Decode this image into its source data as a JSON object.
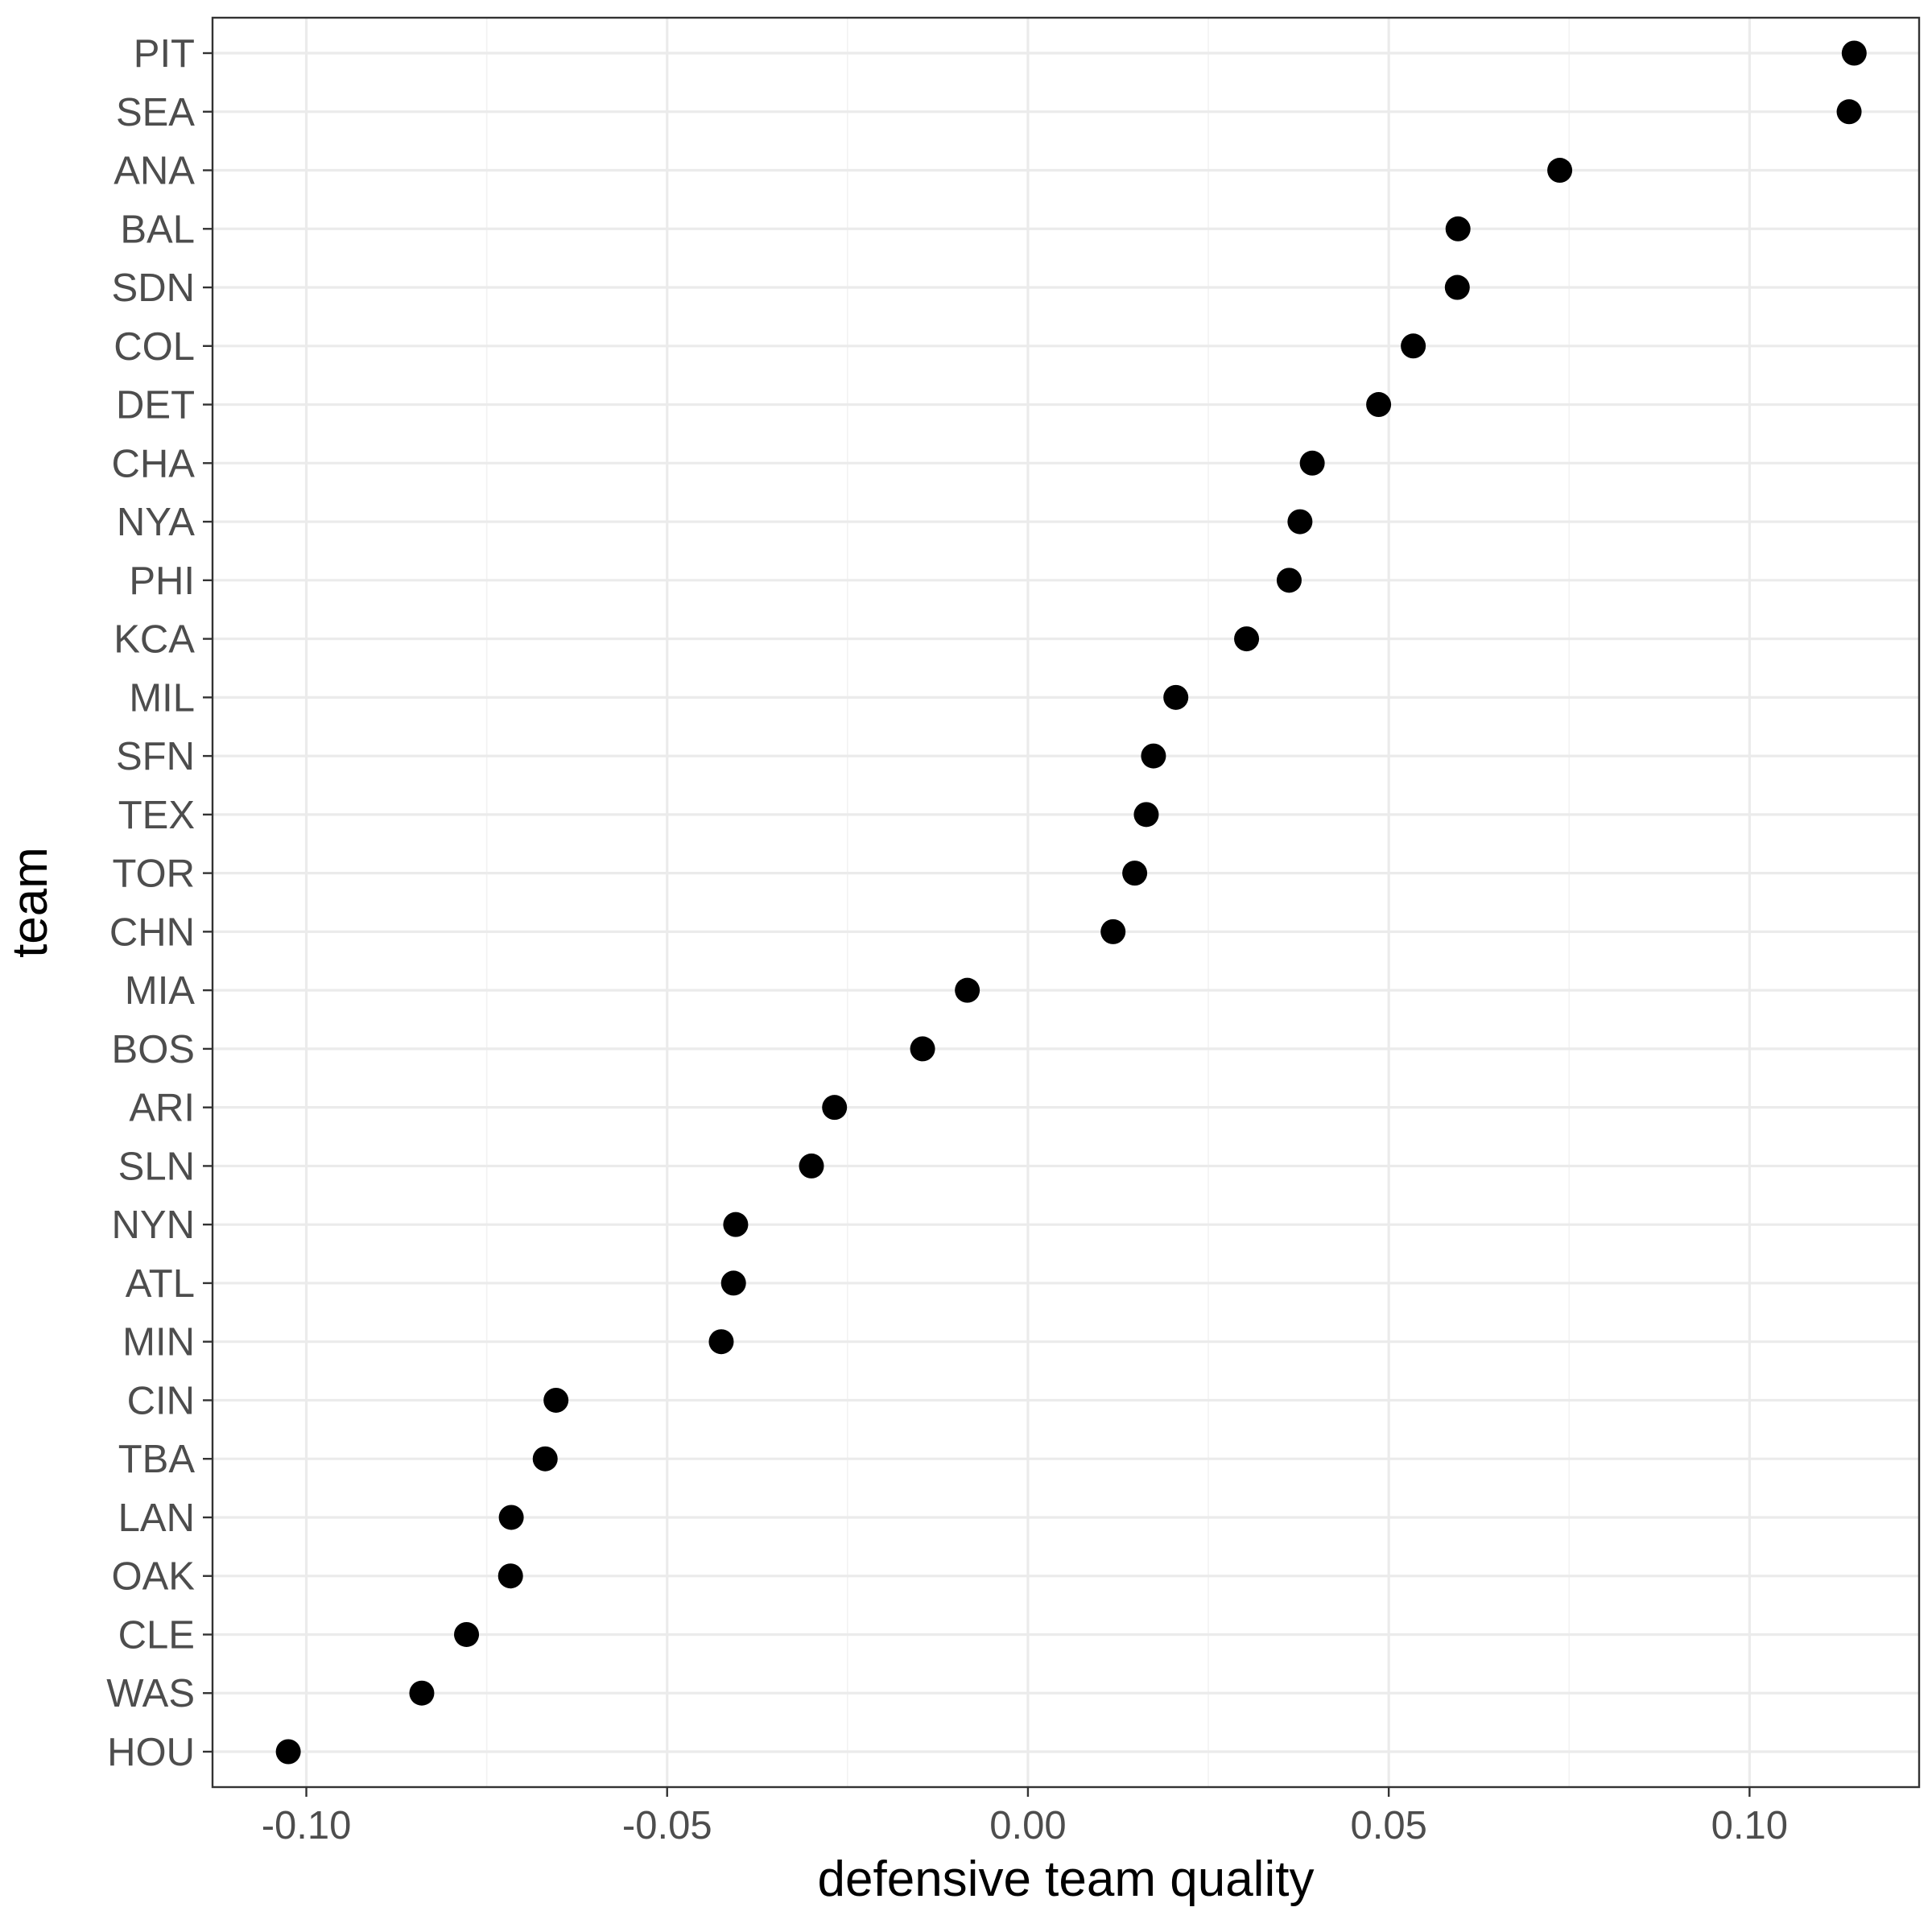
{
  "chart_data": {
    "type": "scatter",
    "xlabel": "defensive team quality",
    "ylabel": "team",
    "xlim": [
      -0.113,
      0.1235
    ],
    "x_ticks": [
      -0.1,
      -0.05,
      0.0,
      0.05,
      0.1
    ],
    "x_tick_labels": [
      "-0.10",
      "-0.05",
      "0.00",
      "0.05",
      "0.10"
    ],
    "grid": true,
    "legend": "none",
    "point_color": "#000000",
    "categories": [
      "PIT",
      "SEA",
      "ANA",
      "BAL",
      "SDN",
      "COL",
      "DET",
      "CHA",
      "NYA",
      "PHI",
      "KCA",
      "MIL",
      "SFN",
      "TEX",
      "TOR",
      "CHN",
      "MIA",
      "BOS",
      "ARI",
      "SLN",
      "NYN",
      "ATL",
      "MIN",
      "CIN",
      "TBA",
      "LAN",
      "OAK",
      "CLE",
      "WAS",
      "HOU"
    ],
    "values": [
      0.1145,
      0.1138,
      0.0737,
      0.0596,
      0.0595,
      0.0534,
      0.0486,
      0.0394,
      0.0377,
      0.0362,
      0.0303,
      0.0205,
      0.0174,
      0.0164,
      0.0148,
      0.0118,
      -0.0084,
      -0.0146,
      -0.0268,
      -0.03,
      -0.0405,
      -0.0408,
      -0.0425,
      -0.0654,
      -0.0669,
      -0.0716,
      -0.0717,
      -0.0778,
      -0.084,
      -0.1025
    ]
  }
}
